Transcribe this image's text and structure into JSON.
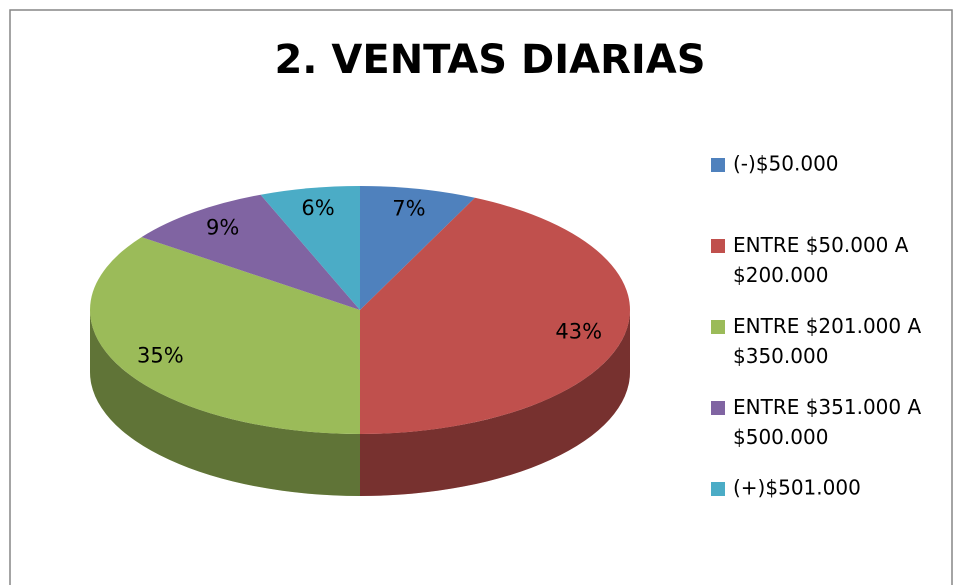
{
  "chart_data": {
    "type": "pie",
    "title": "2. VENTAS DIARIAS",
    "categories": [
      "(-)$50.000",
      "ENTRE $50.000 A $200.000",
      "ENTRE $201.000 A $350.000",
      "ENTRE $351.000 A $500.000",
      "(+)$501.000"
    ],
    "values": [
      7,
      43,
      35,
      9,
      6
    ],
    "value_labels": [
      "7%",
      "43%",
      "35%",
      "9%",
      "6%"
    ],
    "colors": [
      "#4f81bd",
      "#c0504d",
      "#9bbb59",
      "#8064a2",
      "#4bacc6"
    ],
    "legend": "right"
  }
}
